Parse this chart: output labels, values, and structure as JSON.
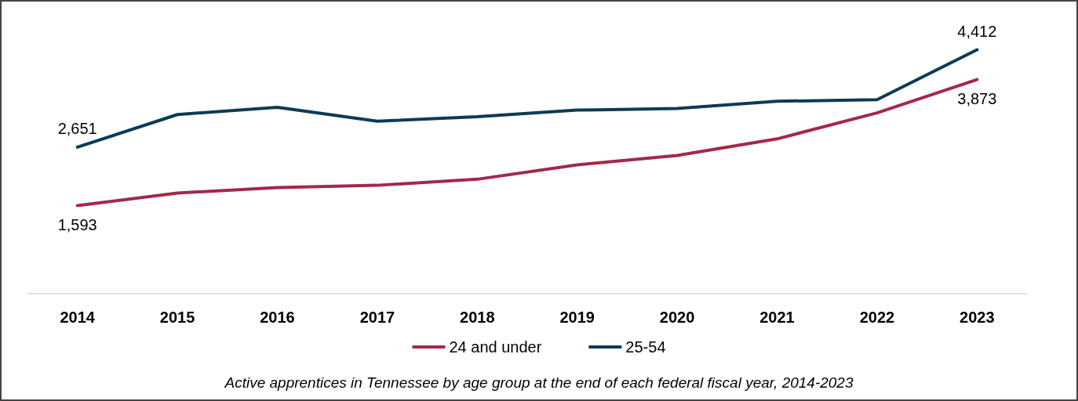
{
  "chart_data": {
    "type": "line",
    "categories": [
      "2014",
      "2015",
      "2016",
      "2017",
      "2018",
      "2019",
      "2020",
      "2021",
      "2022",
      "2023"
    ],
    "series": [
      {
        "name": "24 and under",
        "color": "#a3284a",
        "values": [
          1593,
          1820,
          1920,
          1960,
          2070,
          2330,
          2500,
          2800,
          3270,
          3873
        ],
        "value_labels": [
          "1,593",
          null,
          null,
          null,
          null,
          null,
          null,
          null,
          null,
          "3,873"
        ]
      },
      {
        "name": "25-54",
        "color": "#0d3b56",
        "values": [
          2651,
          3240,
          3370,
          3120,
          3200,
          3320,
          3350,
          3480,
          3510,
          4412
        ],
        "value_labels": [
          "2,651",
          null,
          null,
          null,
          null,
          null,
          null,
          null,
          null,
          "4,412"
        ]
      }
    ],
    "grid": false,
    "legend": "bottom",
    "marker": "none",
    "line_style": "solid",
    "annotations": [
      "Active apprentices in Tennessee by age group at the end of each federal fiscal year, 2014-2023"
    ]
  }
}
